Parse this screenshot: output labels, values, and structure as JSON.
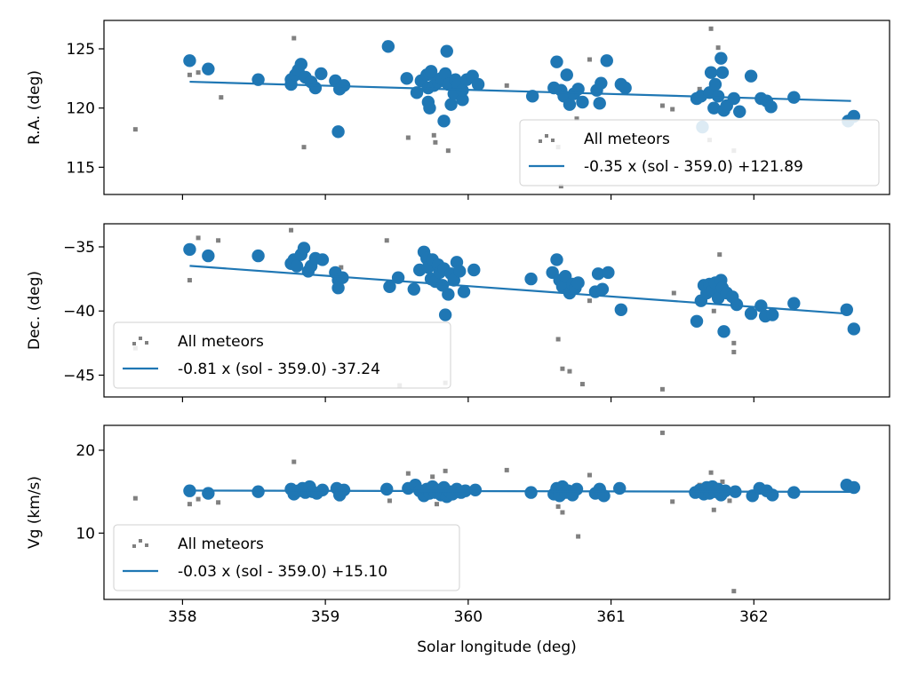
{
  "colors": {
    "accent": "#1f77b4",
    "all_meteors": "#808080",
    "axes": "#000000"
  },
  "chart_data": [
    {
      "type": "scatter",
      "ylabel": "R.A. (deg)",
      "xlabel": "",
      "xlim": [
        357.45,
        362.95
      ],
      "ylim": [
        112.7,
        127.4
      ],
      "xticks": [
        358,
        359,
        360,
        361,
        362
      ],
      "show_x_tick_labels": false,
      "yticks": [
        115,
        120,
        125
      ],
      "ytick_labels": [
        "115",
        "120",
        "125"
      ],
      "legend": {
        "position": "lower-right",
        "scatter_label": "All meteors",
        "fit_label": "-0.35 x (sol - 359.0) +121.89"
      },
      "fit": {
        "x": [
          358.05,
          362.68
        ],
        "y": [
          122.22,
          120.6
        ]
      },
      "all_meteors": [
        [
          357.67,
          118.2
        ],
        [
          358.05,
          122.8
        ],
        [
          358.11,
          123.0
        ],
        [
          358.27,
          120.9
        ],
        [
          358.78,
          125.9
        ],
        [
          358.85,
          116.7
        ],
        [
          359.09,
          121.8
        ],
        [
          359.43,
          125.5
        ],
        [
          359.58,
          117.5
        ],
        [
          359.76,
          117.7
        ],
        [
          359.77,
          117.1
        ],
        [
          359.86,
          116.4
        ],
        [
          360.27,
          121.9
        ],
        [
          360.63,
          116.7
        ],
        [
          360.65,
          113.4
        ],
        [
          360.76,
          119.1
        ],
        [
          360.85,
          124.1
        ],
        [
          361.36,
          120.2
        ],
        [
          361.43,
          119.9
        ],
        [
          361.62,
          121.6
        ],
        [
          361.69,
          117.3
        ],
        [
          361.7,
          126.7
        ],
        [
          361.75,
          125.1
        ],
        [
          361.86,
          116.4
        ]
      ],
      "selected": [
        [
          358.05,
          124.0
        ],
        [
          358.18,
          123.3
        ],
        [
          358.53,
          122.4
        ],
        [
          358.76,
          122.0
        ],
        [
          358.76,
          122.4
        ],
        [
          358.79,
          122.8
        ],
        [
          358.81,
          123.2
        ],
        [
          358.83,
          123.7
        ],
        [
          358.86,
          122.6
        ],
        [
          358.9,
          122.2
        ],
        [
          358.93,
          121.7
        ],
        [
          358.97,
          122.9
        ],
        [
          359.07,
          122.3
        ],
        [
          359.1,
          121.6
        ],
        [
          359.13,
          121.9
        ],
        [
          359.09,
          118.0
        ],
        [
          359.44,
          125.2
        ],
        [
          359.57,
          122.5
        ],
        [
          359.64,
          121.3
        ],
        [
          359.67,
          122.3
        ],
        [
          359.71,
          122.8
        ],
        [
          359.72,
          121.7
        ],
        [
          359.72,
          120.5
        ],
        [
          359.73,
          120.0
        ],
        [
          359.73,
          122.9
        ],
        [
          359.74,
          123.1
        ],
        [
          359.76,
          121.9
        ],
        [
          359.79,
          122.2
        ],
        [
          359.81,
          122.5
        ],
        [
          359.83,
          118.9
        ],
        [
          359.84,
          122.9
        ],
        [
          359.85,
          124.8
        ],
        [
          359.86,
          122.0
        ],
        [
          359.88,
          120.3
        ],
        [
          359.9,
          121.2
        ],
        [
          359.91,
          122.4
        ],
        [
          359.93,
          122.0
        ],
        [
          359.96,
          120.7
        ],
        [
          359.96,
          121.5
        ],
        [
          359.99,
          122.4
        ],
        [
          360.03,
          122.7
        ],
        [
          360.07,
          122.0
        ],
        [
          360.45,
          121.0
        ],
        [
          360.6,
          121.7
        ],
        [
          360.62,
          123.9
        ],
        [
          360.65,
          121.5
        ],
        [
          360.67,
          121.0
        ],
        [
          360.69,
          122.8
        ],
        [
          360.71,
          120.3
        ],
        [
          360.74,
          121.2
        ],
        [
          360.77,
          121.6
        ],
        [
          360.8,
          120.5
        ],
        [
          360.9,
          121.5
        ],
        [
          360.92,
          120.4
        ],
        [
          360.93,
          122.1
        ],
        [
          360.97,
          124.0
        ],
        [
          361.07,
          122.0
        ],
        [
          361.1,
          121.7
        ],
        [
          361.6,
          120.8
        ],
        [
          361.63,
          121.0
        ],
        [
          361.64,
          118.4
        ],
        [
          361.69,
          121.3
        ],
        [
          361.7,
          123.0
        ],
        [
          361.72,
          120.0
        ],
        [
          361.73,
          122.0
        ],
        [
          361.75,
          121.0
        ],
        [
          361.77,
          124.2
        ],
        [
          361.78,
          123.0
        ],
        [
          361.79,
          119.8
        ],
        [
          361.81,
          120.2
        ],
        [
          361.86,
          120.8
        ],
        [
          361.9,
          119.7
        ],
        [
          361.98,
          122.7
        ],
        [
          362.05,
          120.8
        ],
        [
          362.09,
          120.6
        ],
        [
          362.12,
          120.1
        ],
        [
          362.28,
          120.9
        ],
        [
          362.66,
          118.9
        ],
        [
          362.7,
          119.3
        ]
      ]
    },
    {
      "type": "scatter",
      "ylabel": "Dec. (deg)",
      "xlabel": "",
      "xlim": [
        357.45,
        362.95
      ],
      "ylim": [
        -46.7,
        -33.2
      ],
      "xticks": [
        358,
        359,
        360,
        361,
        362
      ],
      "show_x_tick_labels": false,
      "yticks": [
        -45,
        -40,
        -35
      ],
      "ytick_labels": [
        "−45",
        "−40",
        "−35"
      ],
      "legend": {
        "position": "lower-left",
        "scatter_label": "All meteors",
        "fit_label": "-0.81 x (sol - 359.0) -37.24"
      },
      "fit": {
        "x": [
          358.05,
          362.68
        ],
        "y": [
          -36.48,
          -40.23
        ]
      },
      "all_meteors": [
        [
          357.67,
          -42.9
        ],
        [
          358.05,
          -37.6
        ],
        [
          358.11,
          -34.3
        ],
        [
          358.25,
          -34.5
        ],
        [
          358.76,
          -33.7
        ],
        [
          359.11,
          -36.6
        ],
        [
          359.43,
          -34.5
        ],
        [
          359.52,
          -45.8
        ],
        [
          359.84,
          -45.6
        ],
        [
          360.63,
          -42.2
        ],
        [
          360.66,
          -44.5
        ],
        [
          360.71,
          -44.7
        ],
        [
          360.8,
          -45.7
        ],
        [
          360.85,
          -39.2
        ],
        [
          361.36,
          -46.1
        ],
        [
          361.44,
          -38.6
        ],
        [
          361.72,
          -40.0
        ],
        [
          361.76,
          -35.6
        ],
        [
          361.86,
          -42.5
        ],
        [
          361.86,
          -43.2
        ]
      ],
      "selected": [
        [
          358.05,
          -35.2
        ],
        [
          358.18,
          -35.7
        ],
        [
          358.53,
          -35.7
        ],
        [
          358.76,
          -36.3
        ],
        [
          358.78,
          -36.0
        ],
        [
          358.8,
          -36.5
        ],
        [
          358.83,
          -35.6
        ],
        [
          358.85,
          -35.1
        ],
        [
          358.88,
          -36.9
        ],
        [
          358.9,
          -36.5
        ],
        [
          358.93,
          -35.9
        ],
        [
          358.98,
          -36.0
        ],
        [
          359.07,
          -37.0
        ],
        [
          359.09,
          -37.6
        ],
        [
          359.09,
          -38.2
        ],
        [
          359.12,
          -37.4
        ],
        [
          359.45,
          -38.1
        ],
        [
          359.51,
          -37.4
        ],
        [
          359.62,
          -38.3
        ],
        [
          359.66,
          -36.8
        ],
        [
          359.69,
          -35.4
        ],
        [
          359.71,
          -35.9
        ],
        [
          359.72,
          -36.6
        ],
        [
          359.74,
          -37.5
        ],
        [
          359.75,
          -36.0
        ],
        [
          359.77,
          -37.7
        ],
        [
          359.79,
          -36.4
        ],
        [
          359.8,
          -37.0
        ],
        [
          359.82,
          -38.0
        ],
        [
          359.83,
          -36.7
        ],
        [
          359.84,
          -40.3
        ],
        [
          359.86,
          -38.7
        ],
        [
          359.88,
          -37.1
        ],
        [
          359.9,
          -37.6
        ],
        [
          359.92,
          -36.2
        ],
        [
          359.94,
          -36.9
        ],
        [
          359.97,
          -38.5
        ],
        [
          360.04,
          -36.8
        ],
        [
          360.44,
          -37.5
        ],
        [
          360.59,
          -37.0
        ],
        [
          360.62,
          -36.0
        ],
        [
          360.64,
          -37.6
        ],
        [
          360.66,
          -38.1
        ],
        [
          360.68,
          -37.3
        ],
        [
          360.71,
          -38.6
        ],
        [
          360.73,
          -37.9
        ],
        [
          360.75,
          -38.2
        ],
        [
          360.77,
          -37.8
        ],
        [
          360.89,
          -38.5
        ],
        [
          360.91,
          -37.1
        ],
        [
          360.94,
          -38.3
        ],
        [
          360.98,
          -37.0
        ],
        [
          361.07,
          -39.9
        ],
        [
          361.6,
          -40.8
        ],
        [
          361.63,
          -39.2
        ],
        [
          361.65,
          -38.0
        ],
        [
          361.67,
          -38.6
        ],
        [
          361.69,
          -37.9
        ],
        [
          361.71,
          -38.4
        ],
        [
          361.73,
          -37.8
        ],
        [
          361.75,
          -39.0
        ],
        [
          361.77,
          -37.6
        ],
        [
          361.78,
          -38.2
        ],
        [
          361.79,
          -41.6
        ],
        [
          361.81,
          -38.6
        ],
        [
          361.85,
          -38.9
        ],
        [
          361.88,
          -39.5
        ],
        [
          361.98,
          -40.2
        ],
        [
          362.05,
          -39.6
        ],
        [
          362.08,
          -40.4
        ],
        [
          362.13,
          -40.3
        ],
        [
          362.28,
          -39.4
        ],
        [
          362.65,
          -39.9
        ],
        [
          362.7,
          -41.4
        ]
      ]
    },
    {
      "type": "scatter",
      "ylabel": "Vg (km/s)",
      "xlabel": "Solar longitude (deg)",
      "xlim": [
        357.45,
        362.95
      ],
      "ylim": [
        2.0,
        23.0
      ],
      "xticks": [
        358,
        359,
        360,
        361,
        362
      ],
      "xtick_labels": [
        "358",
        "359",
        "360",
        "361",
        "362"
      ],
      "show_x_tick_labels": true,
      "yticks": [
        10,
        20
      ],
      "ytick_labels": [
        "10",
        "20"
      ],
      "legend": {
        "position": "lower-left",
        "scatter_label": "All meteors",
        "fit_label": "-0.03 x (sol - 359.0) +15.10"
      },
      "fit": {
        "x": [
          358.05,
          362.68
        ],
        "y": [
          15.13,
          14.98
        ]
      },
      "all_meteors": [
        [
          357.67,
          14.2
        ],
        [
          358.05,
          13.5
        ],
        [
          358.11,
          14.1
        ],
        [
          358.25,
          13.7
        ],
        [
          358.78,
          18.6
        ],
        [
          359.1,
          14.1
        ],
        [
          359.45,
          13.9
        ],
        [
          359.58,
          17.2
        ],
        [
          359.75,
          16.8
        ],
        [
          359.78,
          13.5
        ],
        [
          359.84,
          17.5
        ],
        [
          360.27,
          17.6
        ],
        [
          360.63,
          13.2
        ],
        [
          360.66,
          12.5
        ],
        [
          360.77,
          9.6
        ],
        [
          360.85,
          17.0
        ],
        [
          361.36,
          22.1
        ],
        [
          361.43,
          13.8
        ],
        [
          361.62,
          15.8
        ],
        [
          361.69,
          15.4
        ],
        [
          361.7,
          17.3
        ],
        [
          361.72,
          12.8
        ],
        [
          361.78,
          16.2
        ],
        [
          361.83,
          13.9
        ],
        [
          361.86,
          3.0
        ]
      ],
      "selected": [
        [
          358.05,
          15.1
        ],
        [
          358.18,
          14.8
        ],
        [
          358.53,
          15.0
        ],
        [
          358.76,
          15.3
        ],
        [
          358.78,
          14.7
        ],
        [
          358.81,
          15.1
        ],
        [
          358.84,
          15.4
        ],
        [
          358.86,
          14.9
        ],
        [
          358.89,
          15.6
        ],
        [
          358.91,
          15.0
        ],
        [
          358.94,
          14.8
        ],
        [
          358.98,
          15.2
        ],
        [
          359.08,
          15.4
        ],
        [
          359.1,
          14.6
        ],
        [
          359.13,
          15.2
        ],
        [
          359.43,
          15.3
        ],
        [
          359.58,
          15.4
        ],
        [
          359.63,
          15.8
        ],
        [
          359.66,
          15.1
        ],
        [
          359.69,
          14.5
        ],
        [
          359.71,
          15.3
        ],
        [
          359.73,
          14.8
        ],
        [
          359.75,
          15.6
        ],
        [
          359.77,
          14.9
        ],
        [
          359.79,
          15.2
        ],
        [
          359.81,
          14.6
        ],
        [
          359.83,
          15.5
        ],
        [
          359.85,
          14.4
        ],
        [
          359.87,
          15.0
        ],
        [
          359.89,
          14.7
        ],
        [
          359.92,
          15.3
        ],
        [
          359.95,
          14.9
        ],
        [
          359.98,
          15.1
        ],
        [
          360.05,
          15.2
        ],
        [
          360.44,
          14.9
        ],
        [
          360.6,
          14.7
        ],
        [
          360.62,
          15.4
        ],
        [
          360.64,
          14.5
        ],
        [
          360.66,
          15.6
        ],
        [
          360.68,
          14.9
        ],
        [
          360.7,
          15.1
        ],
        [
          360.73,
          14.6
        ],
        [
          360.76,
          15.3
        ],
        [
          360.89,
          14.8
        ],
        [
          360.92,
          15.3
        ],
        [
          360.95,
          14.5
        ],
        [
          361.06,
          15.4
        ],
        [
          361.59,
          14.9
        ],
        [
          361.62,
          15.2
        ],
        [
          361.65,
          14.7
        ],
        [
          361.67,
          15.5
        ],
        [
          361.69,
          14.8
        ],
        [
          361.71,
          15.6
        ],
        [
          361.73,
          15.0
        ],
        [
          361.75,
          15.3
        ],
        [
          361.77,
          14.6
        ],
        [
          361.8,
          15.1
        ],
        [
          361.87,
          15.0
        ],
        [
          361.99,
          14.5
        ],
        [
          362.04,
          15.4
        ],
        [
          362.09,
          15.1
        ],
        [
          362.13,
          14.6
        ],
        [
          362.28,
          14.9
        ],
        [
          362.65,
          15.8
        ],
        [
          362.7,
          15.5
        ]
      ]
    }
  ]
}
